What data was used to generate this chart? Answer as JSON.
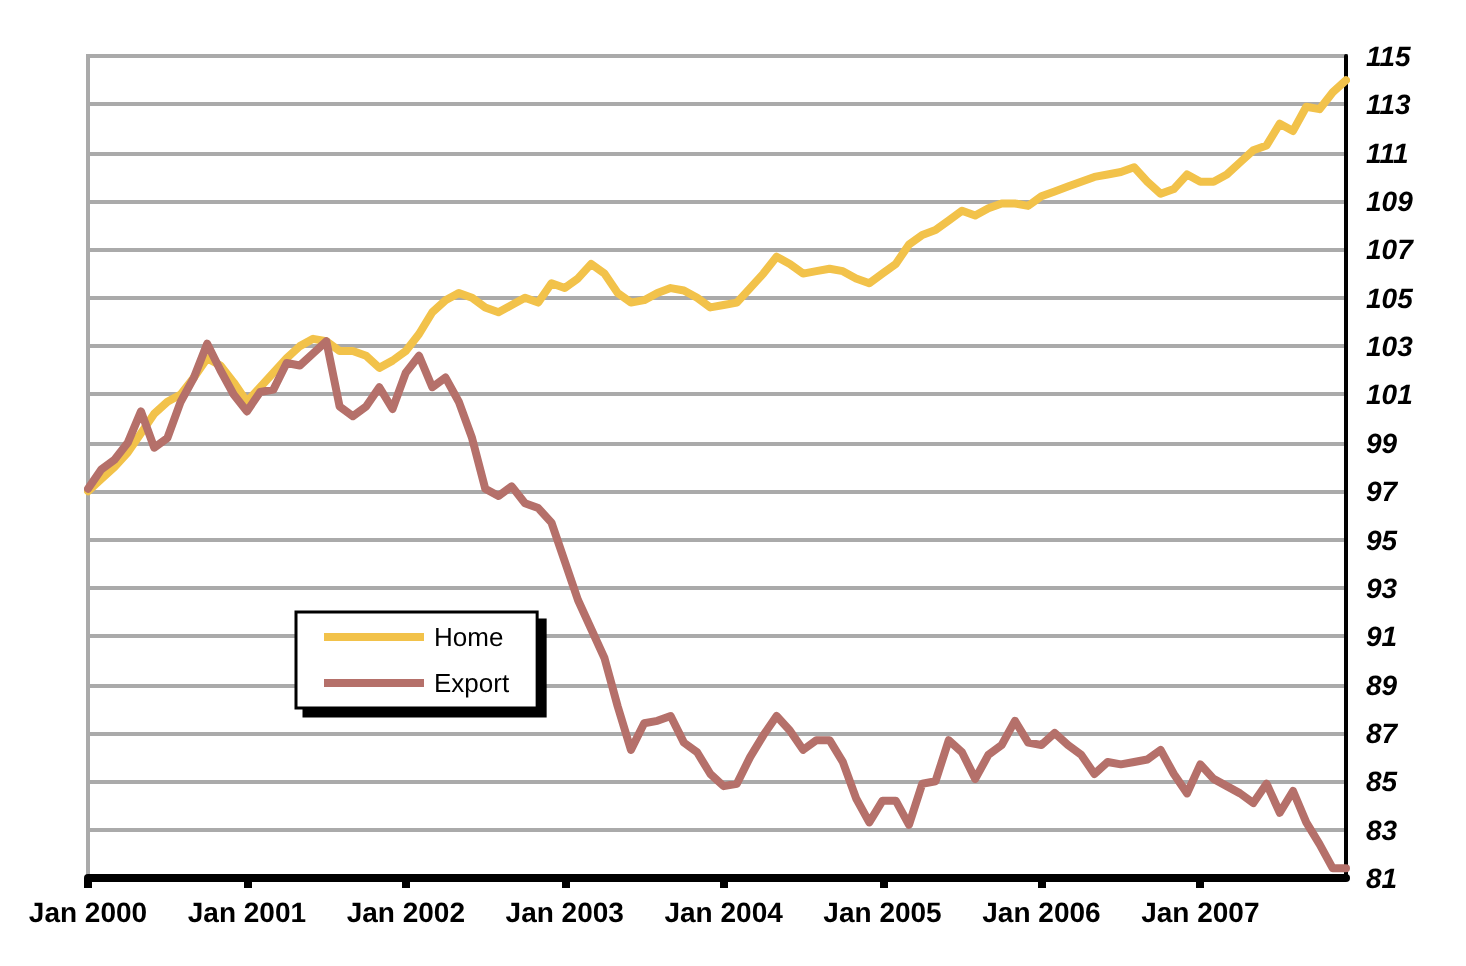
{
  "chart_data": {
    "type": "line",
    "categories": [
      "Jan 2000",
      null,
      null,
      null,
      null,
      null,
      null,
      null,
      null,
      null,
      null,
      null,
      "Jan 2001",
      null,
      null,
      null,
      null,
      null,
      null,
      null,
      null,
      null,
      null,
      null,
      "Jan 2002",
      null,
      null,
      null,
      null,
      null,
      null,
      null,
      null,
      null,
      null,
      null,
      "Jan 2003",
      null,
      null,
      null,
      null,
      null,
      null,
      null,
      null,
      null,
      null,
      null,
      "Jan 2004",
      null,
      null,
      null,
      null,
      null,
      null,
      null,
      null,
      null,
      null,
      null,
      "Jan 2005",
      null,
      null,
      null,
      null,
      null,
      null,
      null,
      null,
      null,
      null,
      null,
      "Jan 2006",
      null,
      null,
      null,
      null,
      null,
      null,
      null,
      null,
      null,
      null,
      null,
      "Jan 2007",
      null,
      null,
      null,
      null,
      null,
      null,
      null,
      null,
      null,
      null,
      null
    ],
    "series": [
      {
        "name": "Home",
        "color": "#f2c24a",
        "values": [
          97,
          97.5,
          98,
          98.6,
          99.4,
          100.2,
          100.7,
          101,
          101.7,
          102.5,
          102.2,
          101.5,
          100.7,
          101.3,
          101.9,
          102.5,
          103,
          103.3,
          103.2,
          102.8,
          102.8,
          102.6,
          102.1,
          102.4,
          102.8,
          103.5,
          104.4,
          104.9,
          105.2,
          105,
          104.6,
          104.4,
          104.7,
          105,
          104.8,
          105.6,
          105.4,
          105.8,
          106.4,
          106,
          105.2,
          104.8,
          104.9,
          105.2,
          105.4,
          105.3,
          105,
          104.6,
          104.7,
          104.8,
          105.4,
          106,
          106.7,
          106.4,
          106,
          106.1,
          106.2,
          106.1,
          105.8,
          105.6,
          106,
          106.4,
          107.2,
          107.6,
          107.8,
          108.2,
          108.6,
          108.4,
          108.7,
          108.9,
          108.9,
          108.8,
          109.2,
          109.4,
          109.6,
          109.8,
          110,
          110.1,
          110.2,
          110.4,
          109.8,
          109.3,
          109.5,
          110.1,
          109.8,
          109.8,
          110.1,
          110.6,
          111.1,
          111.3,
          112.2,
          111.9,
          112.9,
          112.8,
          113.5,
          114
        ]
      },
      {
        "name": "Export",
        "color": "#b5706a",
        "values": [
          97.1,
          97.9,
          98.3,
          99,
          100.3,
          98.8,
          99.2,
          100.7,
          101.7,
          103.1,
          102,
          101,
          100.3,
          101.1,
          101.2,
          102.3,
          102.2,
          102.7,
          103.2,
          100.5,
          100.1,
          100.5,
          101.3,
          100.4,
          101.9,
          102.6,
          101.3,
          101.7,
          100.7,
          99.2,
          97.1,
          96.8,
          97.2,
          96.5,
          96.3,
          95.7,
          94.1,
          92.5,
          91.3,
          90.1,
          88.1,
          86.3,
          87.4,
          87.5,
          87.7,
          86.6,
          86.2,
          85.3,
          84.8,
          84.9,
          86,
          86.9,
          87.7,
          87.1,
          86.3,
          86.7,
          86.7,
          85.8,
          84.3,
          83.3,
          84.2,
          84.2,
          83.2,
          84.9,
          85,
          86.7,
          86.2,
          85.1,
          86.1,
          86.5,
          87.5,
          86.6,
          86.5,
          87,
          86.5,
          86.1,
          85.3,
          85.8,
          85.7,
          85.8,
          85.9,
          86.3,
          85.3,
          84.5,
          85.7,
          85.1,
          84.8,
          84.5,
          84.1,
          84.9,
          83.7,
          84.6,
          83.3,
          82.4,
          81.4,
          81.4
        ]
      }
    ],
    "ylim": [
      81,
      115
    ],
    "yticks": [
      81,
      83,
      85,
      87,
      89,
      91,
      93,
      95,
      97,
      99,
      101,
      103,
      105,
      107,
      109,
      111,
      113,
      115
    ],
    "grid": "y",
    "legend": "center",
    "marker": "none",
    "line_style": "solid"
  }
}
